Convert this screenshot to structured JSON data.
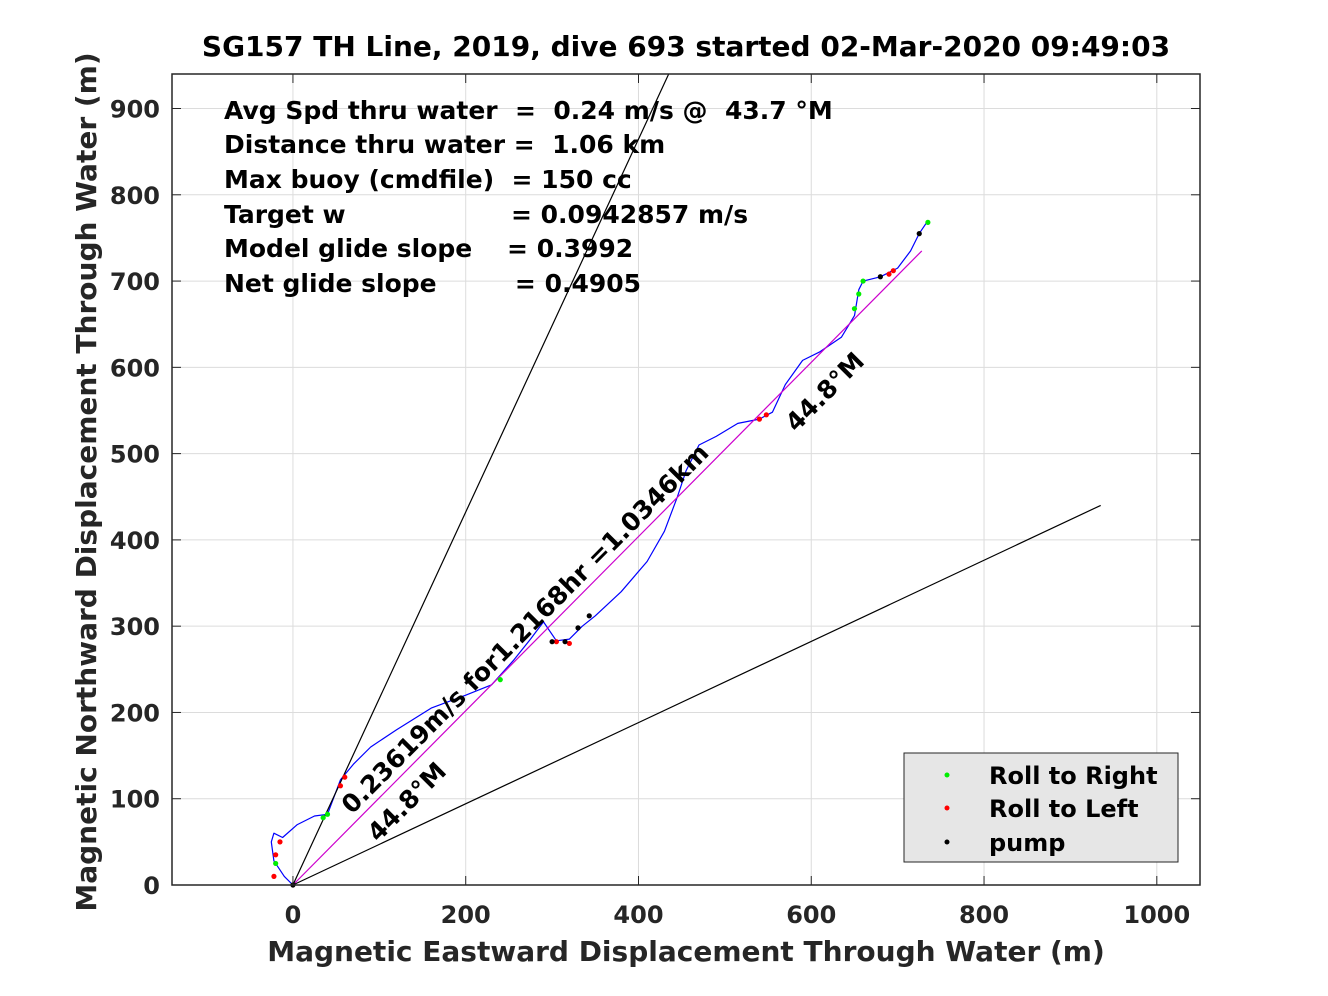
{
  "chart_data": {
    "type": "line",
    "title": "SG157 TH Line, 2019, dive 693 started 02-Mar-2020 09:49:03",
    "xlabel": "Magnetic Eastward Displacement Through Water (m)",
    "ylabel": "Magnetic Northward Displacement Through Water (m)",
    "xlim": [
      -140,
      1050
    ],
    "ylim": [
      0,
      940
    ],
    "xticks": [
      0,
      200,
      400,
      600,
      800,
      1000
    ],
    "yticks": [
      0,
      100,
      200,
      300,
      400,
      500,
      600,
      700,
      800,
      900
    ],
    "grid": true,
    "annotations": [
      "Avg Spd thru water  =  0.24 m/s @  43.7 °M",
      "Distance thru water =  1.06 km",
      "Max buoy (cmdfile)  = 150 cc",
      "Target w                   = 0.0942857 m/s",
      "Model glide slope    = 0.3992",
      "Net glide slope         = 0.4905"
    ],
    "rotated_labels": {
      "track_label": "0.23619m/s for1.2168hr =1.0346km",
      "heading_lower": "44.8°M",
      "heading_upper": "44.8°M"
    },
    "legend": {
      "placement": "bottom-right",
      "entries": [
        {
          "label": "Roll to Right",
          "color": "#00ee00"
        },
        {
          "label": "Roll to Left",
          "color": "#ff0000"
        },
        {
          "label": "pump",
          "color": "#000000"
        }
      ]
    },
    "series": [
      {
        "role": "glider-track",
        "color": "#0000ff",
        "x": [
          0,
          -10,
          -22,
          -25,
          -22,
          -12,
          5,
          25,
          40,
          55,
          70,
          90,
          120,
          160,
          200,
          230,
          255,
          275,
          290,
          305,
          320,
          335,
          350,
          380,
          410,
          430,
          445,
          455,
          470,
          490,
          515,
          540,
          555,
          570,
          590,
          610,
          635,
          650,
          655,
          660,
          680,
          700,
          715,
          725,
          735
        ],
        "y": [
          0,
          10,
          28,
          50,
          60,
          55,
          70,
          80,
          82,
          122,
          140,
          160,
          180,
          205,
          220,
          232,
          260,
          285,
          305,
          283,
          285,
          300,
          312,
          340,
          375,
          410,
          450,
          480,
          510,
          520,
          535,
          540,
          548,
          580,
          608,
          618,
          635,
          660,
          690,
          700,
          705,
          715,
          735,
          755,
          770
        ]
      },
      {
        "role": "depth-average-current",
        "color": "#cc00cc",
        "x": [
          0,
          728
        ],
        "y": [
          0,
          735
        ]
      },
      {
        "role": "heading-line",
        "color": "#000000",
        "x": [
          0,
          435
        ],
        "y": [
          0,
          940
        ]
      },
      {
        "role": "heading-line",
        "color": "#000000",
        "x": [
          0,
          935
        ],
        "y": [
          0,
          440
        ]
      }
    ],
    "markers": {
      "roll_right": {
        "color": "#00ee00",
        "x": [
          -20,
          35,
          40,
          240,
          650,
          655,
          660,
          735
        ],
        "y": [
          25,
          78,
          82,
          238,
          668,
          685,
          700,
          768
        ]
      },
      "roll_left": {
        "color": "#ff0000",
        "x": [
          -22,
          -20,
          -15,
          55,
          60,
          305,
          320,
          540,
          548,
          690,
          695
        ],
        "y": [
          10,
          35,
          50,
          115,
          125,
          282,
          280,
          540,
          545,
          708,
          712
        ]
      },
      "pump": {
        "color": "#000000",
        "x": [
          0,
          300,
          315,
          330,
          343,
          725,
          680
        ],
        "y": [
          0,
          282,
          282,
          298,
          312,
          755,
          705
        ]
      }
    }
  }
}
